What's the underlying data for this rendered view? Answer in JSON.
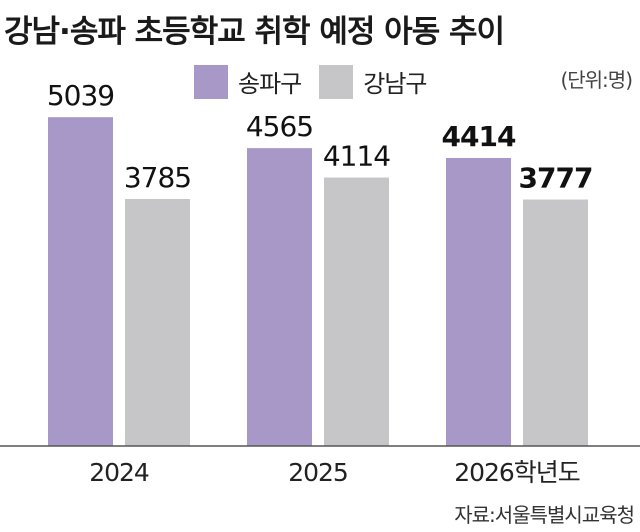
{
  "title": "강남·송파 초등학교 취학 예정 아동 추이",
  "unit": "(단위:명)",
  "source": "자료:서울특별시교육청",
  "colors": {
    "songpa": "#a898c8",
    "gangnam": "#c6c6c8",
    "axis": "#555555"
  },
  "chart_data": {
    "type": "bar",
    "categories": [
      "2024",
      "2025",
      "2026학년도"
    ],
    "series": [
      {
        "name": "송파구",
        "values": [
          5039,
          4565,
          4414
        ]
      },
      {
        "name": "강남구",
        "values": [
          3785,
          4114,
          3777
        ]
      }
    ],
    "value_labels": [
      [
        "5039",
        "3785"
      ],
      [
        "4565",
        "4114"
      ],
      [
        "4414",
        "3777"
      ]
    ],
    "emphasized_category": "2026학년도",
    "ylim": [
      0,
      5900
    ],
    "legend_position": "top",
    "grid": false
  }
}
